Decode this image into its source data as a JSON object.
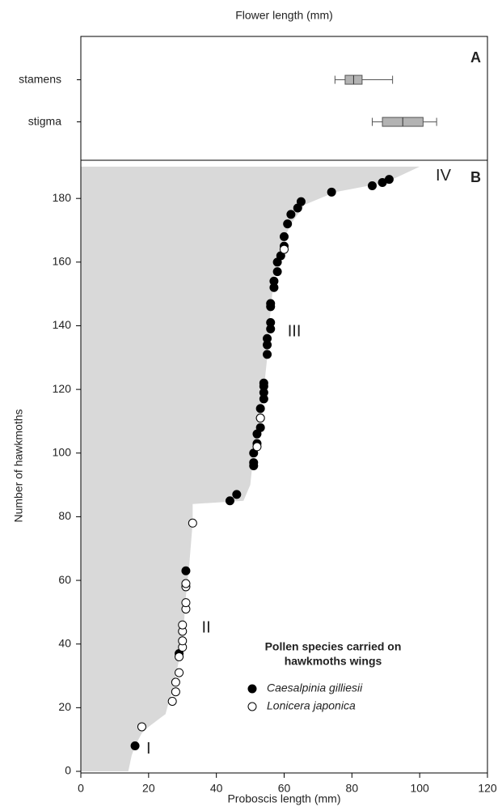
{
  "chart_data": [
    {
      "type": "box",
      "title": "Flower length (mm)",
      "label": "A",
      "categories": [
        "stamens",
        "stigma"
      ],
      "color": "#b3b3b3",
      "boxes": [
        {
          "min": 75,
          "q1": 78,
          "median": 80.5,
          "q3": 83,
          "max": 92
        },
        {
          "min": 86,
          "q1": 89,
          "median": 95,
          "q3": 101,
          "max": 105
        }
      ],
      "xlim": [
        0,
        120
      ]
    },
    {
      "type": "scatter",
      "label": "B",
      "xlabel": "Proboscis length (mm)",
      "ylabel": "Number of hawkmoths",
      "xlim": [
        0,
        120
      ],
      "ylim": [
        0,
        192
      ],
      "xticks": [
        0,
        20,
        40,
        60,
        80,
        100,
        120
      ],
      "yticks": [
        0,
        20,
        40,
        60,
        80,
        100,
        120,
        140,
        160,
        180
      ],
      "profile": {
        "color": "#d9d9d9",
        "x": [
          14,
          15,
          16,
          18,
          20,
          25,
          26,
          27,
          28,
          29,
          30,
          31,
          32,
          33,
          33,
          48,
          50,
          51,
          53,
          54,
          55,
          56,
          57,
          59,
          62,
          66,
          75,
          90,
          100
        ],
        "y": [
          0,
          5,
          8,
          12,
          14,
          18,
          22,
          25,
          30,
          35,
          40,
          55,
          65,
          78,
          84,
          85,
          90,
          100,
          110,
          120,
          130,
          145,
          155,
          165,
          172,
          178,
          182,
          185,
          190
        ]
      },
      "series": [
        {
          "name": "Caesalpinia gilliesii",
          "color": "#000000",
          "x": [
            16,
            29,
            31,
            44,
            46,
            51,
            51,
            51,
            52,
            52,
            53,
            53,
            53,
            54,
            54,
            54,
            54,
            55,
            55,
            55,
            56,
            56,
            56,
            56,
            57,
            57,
            58,
            58,
            59,
            60,
            60,
            61,
            62,
            64,
            65,
            74,
            86,
            89,
            91
          ],
          "y": [
            8,
            37,
            63,
            85,
            87,
            96,
            97,
            100,
            103,
            106,
            108,
            111,
            114,
            117,
            119,
            121,
            122,
            131,
            134,
            136,
            139,
            141,
            146,
            147,
            152,
            154,
            157,
            160,
            162,
            165,
            168,
            172,
            175,
            177,
            179,
            182,
            184,
            185,
            186
          ]
        },
        {
          "name": "Lonicera japonica",
          "color": "#ffffff",
          "x": [
            18,
            27,
            28,
            28,
            29,
            29,
            30,
            30,
            30,
            30,
            31,
            31,
            31,
            31,
            33,
            52,
            53,
            60
          ],
          "y": [
            14,
            22,
            25,
            28,
            31,
            36,
            39,
            41,
            44,
            46,
            51,
            53,
            58,
            59,
            78,
            102,
            111,
            164
          ]
        }
      ],
      "legend_title": [
        "Pollen species carried on",
        "hawkmoths wings"
      ],
      "annotations": [
        {
          "text": "I",
          "x": 20,
          "y": 7
        },
        {
          "text": "II",
          "x": 37,
          "y": 45
        },
        {
          "text": "III",
          "x": 63,
          "y": 138
        },
        {
          "text": "IV",
          "x": 107,
          "y": 187
        }
      ]
    }
  ]
}
